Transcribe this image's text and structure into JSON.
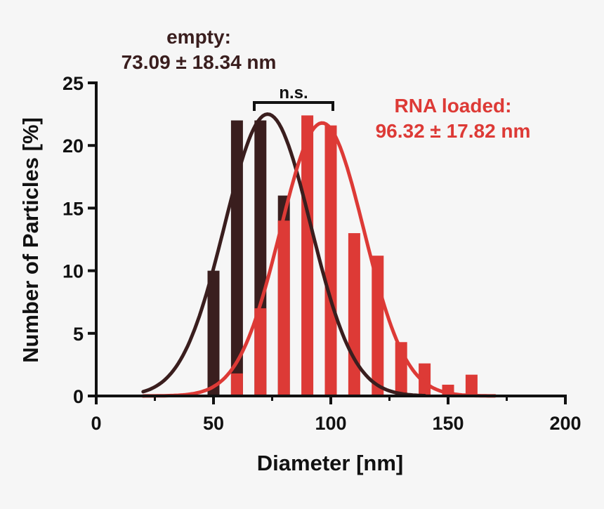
{
  "colors": {
    "background": "#f6f6f6",
    "empty": "#3a1e1e",
    "rna_loaded": "#dd3a36",
    "axis": "#111111"
  },
  "chart_data": {
    "type": "bar",
    "xlabel": "Diameter [nm]",
    "ylabel": "Number of Particles [%]",
    "xlim": [
      0,
      200
    ],
    "ylim": [
      0,
      25
    ],
    "xticks": [
      "0",
      "50",
      "100",
      "150",
      "200"
    ],
    "yticks": [
      "0",
      "5",
      "10",
      "15",
      "20",
      "25"
    ],
    "grid": false,
    "series": [
      {
        "color": "#3a1e1e",
        "x": [
          50,
          60,
          70,
          80
        ],
        "values": [
          10,
          22,
          22,
          16
        ],
        "fit": {
          "type": "gaussian",
          "mean": 73.09,
          "sd": 18.34,
          "peak": 22.5,
          "range": [
            20,
            140
          ]
        }
      },
      {
        "color": "#dd3a36",
        "x": [
          60,
          70,
          80,
          90,
          100,
          110,
          120,
          130,
          140,
          150,
          160
        ],
        "values": [
          1.8,
          7,
          14,
          22.4,
          21.6,
          13,
          11.2,
          4.3,
          2.6,
          0.9,
          1.7
        ],
        "fit": {
          "type": "gaussian",
          "mean": 96.32,
          "sd": 17.82,
          "peak": 21.8,
          "range": [
            20,
            170
          ]
        }
      }
    ],
    "annotations": {
      "empty_line1": "empty:",
      "empty_line2": "73.09 ± 18.34 nm",
      "rna_line1": "RNA loaded:",
      "rna_line2": "96.32 ± 17.82 nm",
      "significance": "n.s."
    }
  }
}
